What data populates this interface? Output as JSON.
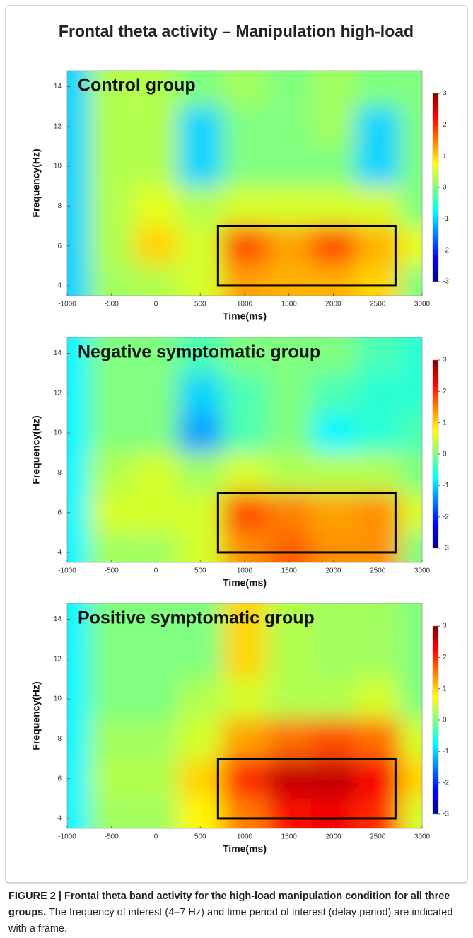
{
  "title": "Frontal theta activity – Manipulation high-load",
  "chart_data": [
    {
      "type": "heatmap",
      "title": "Control group",
      "xlabel": "Time(ms)",
      "ylabel": "Frequency(Hz)",
      "xlim": [
        -1000,
        3000
      ],
      "ylim": [
        3.5,
        14.8
      ],
      "xticks": [
        -1000,
        -500,
        0,
        500,
        1000,
        1500,
        2000,
        2500,
        3000
      ],
      "yticks": [
        4,
        6,
        8,
        10,
        12,
        14
      ],
      "clim": [
        -3,
        3
      ],
      "cticks": [
        -3,
        -2,
        -1,
        0,
        1,
        2,
        3
      ],
      "colormap": "jet",
      "x": [
        -1000,
        -500,
        0,
        500,
        1000,
        1500,
        2000,
        2500,
        3000
      ],
      "y": [
        14,
        12,
        10,
        8,
        6,
        4
      ],
      "z": [
        [
          -1,
          0.3,
          0.3,
          0,
          0.2,
          0,
          0.2,
          0,
          0
        ],
        [
          -1,
          0.3,
          0.3,
          -1,
          0,
          0,
          0.2,
          -1,
          0
        ],
        [
          -1,
          0.3,
          0.3,
          -1,
          0,
          0,
          0,
          -1,
          0
        ],
        [
          -1,
          0.3,
          0.6,
          0.3,
          0.5,
          0.5,
          0.5,
          0.5,
          0
        ],
        [
          -1,
          0.3,
          1,
          0.5,
          1.8,
          1.3,
          1.8,
          1.2,
          0.6
        ],
        [
          -1,
          0.2,
          0.3,
          0.5,
          1.3,
          1.2,
          1.2,
          1,
          0
        ]
      ],
      "frame": {
        "x": [
          700,
          2700
        ],
        "y": [
          4,
          7
        ]
      }
    },
    {
      "type": "heatmap",
      "title": "Negative symptomatic group",
      "xlabel": "Time(ms)",
      "ylabel": "Frequency(Hz)",
      "xlim": [
        -1000,
        3000
      ],
      "ylim": [
        3.5,
        14.8
      ],
      "xticks": [
        -1000,
        -500,
        0,
        500,
        1000,
        1500,
        2000,
        2500,
        3000
      ],
      "yticks": [
        4,
        6,
        8,
        10,
        12,
        14
      ],
      "clim": [
        -3,
        3
      ],
      "cticks": [
        -3,
        -2,
        -1,
        0,
        1,
        2,
        3
      ],
      "colormap": "jet",
      "x": [
        -1000,
        -500,
        0,
        500,
        1000,
        1500,
        2000,
        2500,
        3000
      ],
      "y": [
        14,
        12,
        10,
        8,
        6,
        4
      ],
      "z": [
        [
          -0.8,
          0,
          0,
          -0.3,
          0,
          0,
          0,
          -0.3,
          -0.5
        ],
        [
          -0.8,
          0,
          0,
          -1,
          -0.3,
          0,
          -0.3,
          -0.5,
          -0.5
        ],
        [
          -0.8,
          0,
          0,
          -1.3,
          -0.3,
          0,
          -0.8,
          -0.5,
          -0.3
        ],
        [
          -0.8,
          0.3,
          0.5,
          0.2,
          0.5,
          0.3,
          0.3,
          0.3,
          0
        ],
        [
          -0.8,
          0.5,
          0.5,
          0.5,
          1.8,
          1.5,
          1.3,
          1.4,
          0.5
        ],
        [
          -0.8,
          0.2,
          0.2,
          0.5,
          1.4,
          1.7,
          1.4,
          1.4,
          0
        ]
      ],
      "frame": {
        "x": [
          700,
          2700
        ],
        "y": [
          4,
          7
        ]
      }
    },
    {
      "type": "heatmap",
      "title": "Positive symptomatic group",
      "xlabel": "Time(ms)",
      "ylabel": "Frequency(Hz)",
      "xlim": [
        -1000,
        3000
      ],
      "ylim": [
        3.5,
        14.8
      ],
      "xticks": [
        -1000,
        -500,
        0,
        500,
        1000,
        1500,
        2000,
        2500,
        3000
      ],
      "yticks": [
        4,
        6,
        8,
        10,
        12,
        14
      ],
      "clim": [
        -3,
        3
      ],
      "cticks": [
        -3,
        -2,
        -1,
        0,
        1,
        2,
        3
      ],
      "colormap": "jet",
      "x": [
        -1000,
        -500,
        0,
        500,
        1000,
        1500,
        2000,
        2500,
        3000
      ],
      "y": [
        14,
        12,
        10,
        8,
        6,
        4
      ],
      "z": [
        [
          -0.8,
          0,
          0,
          0,
          1,
          0.3,
          0.2,
          0.2,
          0
        ],
        [
          -0.8,
          0,
          0,
          0,
          1,
          0.3,
          0.2,
          0.2,
          0
        ],
        [
          -0.8,
          0,
          0,
          0.3,
          0.5,
          0.3,
          0.3,
          0.5,
          0
        ],
        [
          -0.8,
          0.2,
          0.2,
          0.5,
          1.3,
          1.6,
          1.8,
          1.6,
          0.5
        ],
        [
          -0.8,
          0.3,
          0.3,
          1,
          2,
          2.6,
          2.6,
          2.3,
          1
        ],
        [
          -0.8,
          0.2,
          0.2,
          0.8,
          1.5,
          2.2,
          2.3,
          2,
          0.5
        ]
      ],
      "frame": {
        "x": [
          700,
          2700
        ],
        "y": [
          4,
          7
        ]
      }
    }
  ],
  "caption": {
    "bold": "FIGURE 2 | Frontal theta band activity for the high-load manipulation condition for all three groups.",
    "text": "The frequency of interest (4–7 Hz) and time period of interest (delay period) are indicated with a frame."
  }
}
